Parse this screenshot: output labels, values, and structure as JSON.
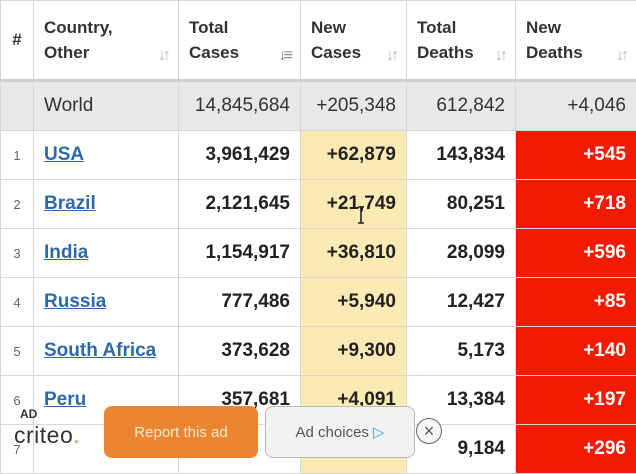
{
  "headers": {
    "hash": "#",
    "country": [
      "Country,",
      "Other"
    ],
    "total_cases": [
      "Total",
      "Cases"
    ],
    "new_cases": [
      "New",
      "Cases"
    ],
    "total_deaths": [
      "Total",
      "Deaths"
    ],
    "new_deaths": [
      "New",
      "Deaths"
    ],
    "sort_icon": "sort-arrows-icon",
    "sort_glyph": "↓↑",
    "sort_active_glyph": "↓≡"
  },
  "world": {
    "country": "World",
    "total_cases": "14,845,684",
    "new_cases": "+205,348",
    "total_deaths": "612,842",
    "new_deaths": "+4,046"
  },
  "rows": [
    {
      "idx": "1",
      "country": "USA",
      "total_cases": "3,961,429",
      "new_cases": "+62,879",
      "total_deaths": "143,834",
      "new_deaths": "+545"
    },
    {
      "idx": "2",
      "country": "Brazil",
      "total_cases": "2,121,645",
      "new_cases": "+21,749",
      "total_deaths": "80,251",
      "new_deaths": "+718"
    },
    {
      "idx": "3",
      "country": "India",
      "total_cases": "1,154,917",
      "new_cases": "+36,810",
      "total_deaths": "28,099",
      "new_deaths": "+596"
    },
    {
      "idx": "4",
      "country": "Russia",
      "total_cases": "777,486",
      "new_cases": "+5,940",
      "total_deaths": "12,427",
      "new_deaths": "+85"
    },
    {
      "idx": "5",
      "country": "South Africa",
      "total_cases": "373,628",
      "new_cases": "+9,300",
      "total_deaths": "5,173",
      "new_deaths": "+140"
    },
    {
      "idx": "6",
      "country": "Peru",
      "total_cases": "357,681",
      "new_cases": "+4,091",
      "total_deaths": "13,384",
      "new_deaths": "+197"
    },
    {
      "idx": "7",
      "country": "",
      "total_cases": "",
      "new_cases": "",
      "total_deaths": "9,184",
      "new_deaths": "+296"
    }
  ],
  "ad": {
    "tag": "AD",
    "brand": "criteo",
    "brand_accent": ".",
    "report_label": "Report this ad",
    "choices_label": "Ad choices",
    "choices_icon": "ad-choices-triangle-icon",
    "close_icon": "close-icon",
    "close_glyph": "×"
  },
  "colors": {
    "new_cases_bg": "#fbeab3",
    "new_deaths_bg": "#f21a00",
    "world_bg": "#e8e8e8",
    "link": "#2e6aa8",
    "report_button": "#e9862f"
  }
}
